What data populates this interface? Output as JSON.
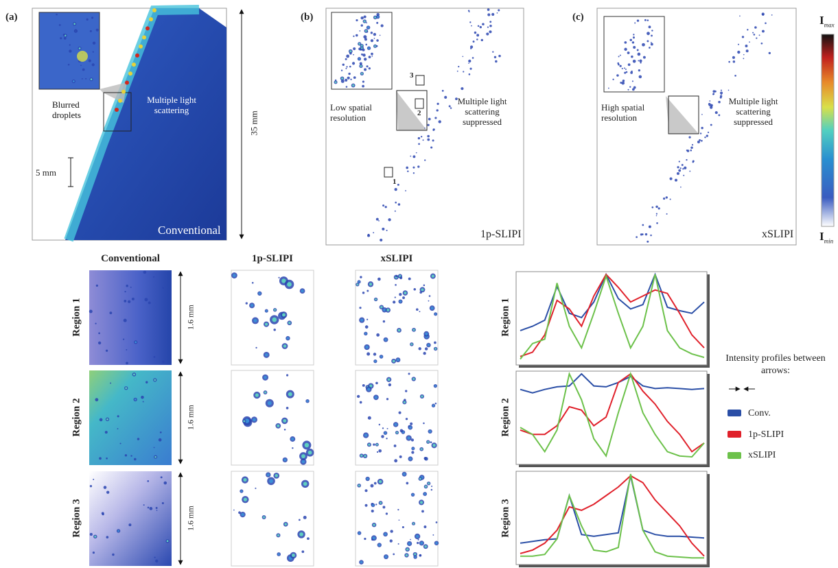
{
  "top_panels": [
    {
      "label": "(a)",
      "annotations": [
        "Blurred droplets",
        "Multiple light scattering"
      ],
      "scale_bar": "5 mm",
      "method": "Conventional",
      "height": "35 mm"
    },
    {
      "label": "(b)",
      "annotations": [
        "Low spatial resolution",
        "Multiple light scattering suppressed"
      ],
      "method": "1p-SLIPI",
      "region_marks": [
        "1",
        "2",
        "3"
      ]
    },
    {
      "label": "(c)",
      "annotations": [
        "High spatial resolution",
        "Multiple light scattering suppressed"
      ],
      "method": "xSLIPI"
    }
  ],
  "colorbar": {
    "max": {
      "symbol": "I",
      "subscript": "max"
    },
    "min": {
      "symbol": "I",
      "subscript": "min"
    }
  },
  "column_headers": [
    "Conventional",
    "1p-SLIPI",
    "xSLIPI"
  ],
  "regions": [
    {
      "label": "Region 1",
      "scale": "1.6 mm",
      "profiles": [
        [
          0.35,
          0.4,
          0.47,
          0.86,
          0.55,
          0.5,
          0.68,
          1.0,
          0.72,
          0.6,
          0.65,
          1.0,
          0.62,
          0.58,
          0.55,
          0.68
        ],
        [
          0.05,
          0.1,
          0.3,
          0.7,
          0.6,
          0.4,
          0.75,
          1.0,
          0.85,
          0.68,
          0.75,
          0.82,
          0.78,
          0.55,
          0.3,
          0.15
        ],
        [
          0.02,
          0.2,
          0.25,
          0.9,
          0.4,
          0.15,
          0.55,
          0.98,
          0.55,
          0.15,
          0.4,
          1.0,
          0.35,
          0.15,
          0.08,
          0.04
        ]
      ]
    },
    {
      "label": "Region 2",
      "scale": "1.6 mm",
      "profiles": [
        [
          0.82,
          0.78,
          0.82,
          0.85,
          0.86,
          1.0,
          0.86,
          0.85,
          0.9,
          0.97,
          0.86,
          0.83,
          0.84,
          0.83,
          0.82,
          0.83
        ],
        [
          0.35,
          0.3,
          0.3,
          0.4,
          0.62,
          0.58,
          0.4,
          0.5,
          0.9,
          1.0,
          0.8,
          0.65,
          0.45,
          0.3,
          0.1,
          0.2
        ],
        [
          0.38,
          0.3,
          0.1,
          0.35,
          1.0,
          0.7,
          0.25,
          0.05,
          0.55,
          1.0,
          0.55,
          0.3,
          0.1,
          0.05,
          0.04,
          0.2
        ]
      ]
    },
    {
      "label": "Region 3",
      "scale": "1.6 mm",
      "profiles": [
        [
          0.2,
          0.22,
          0.24,
          0.25,
          0.75,
          0.3,
          0.28,
          0.3,
          0.32,
          0.98,
          0.35,
          0.3,
          0.28,
          0.28,
          0.27,
          0.26
        ],
        [
          0.08,
          0.12,
          0.2,
          0.35,
          0.62,
          0.58,
          0.65,
          0.75,
          0.85,
          0.98,
          0.9,
          0.7,
          0.55,
          0.4,
          0.2,
          0.05
        ],
        [
          0.05,
          0.05,
          0.07,
          0.25,
          0.75,
          0.4,
          0.12,
          0.1,
          0.15,
          1.0,
          0.35,
          0.1,
          0.05,
          0.04,
          0.03,
          0.03
        ]
      ]
    }
  ],
  "legend": {
    "title": "Intensity profiles between arrows:",
    "items": [
      {
        "name": "Conv.",
        "color": "#2a4ea6"
      },
      {
        "name": "1p-SLIPI",
        "color": "#e0202a"
      },
      {
        "name": "xSLIPI",
        "color": "#6cc14a"
      }
    ]
  }
}
